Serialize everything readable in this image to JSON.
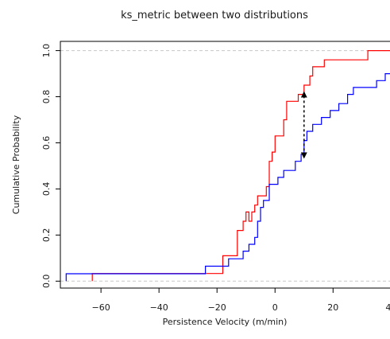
{
  "chart_data": {
    "type": "line",
    "subtype": "ecdf-step",
    "title": "ks_metric between two distributions",
    "xlabel": "Persistence Velocity (m/min)",
    "ylabel": "Cumulative Probability",
    "xlim": [
      -74,
      41
    ],
    "ylim": [
      -0.03,
      1.04
    ],
    "xticks": [
      -60,
      -40,
      -20,
      0,
      20,
      40
    ],
    "xtick_labels": [
      "−60",
      "−40",
      "−20",
      "0",
      "20",
      "40"
    ],
    "yticks": [
      0.0,
      0.2,
      0.4,
      0.6,
      0.8,
      1.0
    ],
    "ytick_labels": [
      "0.0",
      "0.2",
      "0.4",
      "0.6",
      "0.8",
      "1.0"
    ],
    "reference_lines_y": [
      0,
      1
    ],
    "grid": false,
    "legend": "none",
    "series": [
      {
        "color": "#ff0000",
        "points": [
          [
            -63,
            0.0
          ],
          [
            -63,
            0.033
          ],
          [
            -18,
            0.033
          ],
          [
            -18,
            0.11
          ],
          [
            -13,
            0.11
          ],
          [
            -13,
            0.22
          ],
          [
            -11,
            0.22
          ],
          [
            -11,
            0.26
          ],
          [
            -10,
            0.26
          ],
          [
            -10,
            0.3
          ],
          [
            -9,
            0.3
          ],
          [
            -9,
            0.26
          ],
          [
            -8,
            0.26
          ],
          [
            -8,
            0.3
          ],
          [
            -7,
            0.3
          ],
          [
            -7,
            0.33
          ],
          [
            -6,
            0.33
          ],
          [
            -6,
            0.37
          ],
          [
            -3,
            0.37
          ],
          [
            -3,
            0.41
          ],
          [
            -2,
            0.41
          ],
          [
            -2,
            0.52
          ],
          [
            -1,
            0.52
          ],
          [
            -1,
            0.56
          ],
          [
            0,
            0.56
          ],
          [
            0,
            0.63
          ],
          [
            3,
            0.63
          ],
          [
            3,
            0.7
          ],
          [
            4,
            0.7
          ],
          [
            4,
            0.78
          ],
          [
            8,
            0.78
          ],
          [
            8,
            0.81
          ],
          [
            10,
            0.81
          ],
          [
            10,
            0.85
          ],
          [
            12,
            0.85
          ],
          [
            12,
            0.89
          ],
          [
            13,
            0.89
          ],
          [
            13,
            0.93
          ],
          [
            17,
            0.93
          ],
          [
            17,
            0.96
          ],
          [
            32,
            0.96
          ],
          [
            32,
            1.0
          ],
          [
            41,
            1.0
          ]
        ]
      },
      {
        "color": "#0000ff",
        "points": [
          [
            -72,
            0.0
          ],
          [
            -72,
            0.032
          ],
          [
            -24,
            0.032
          ],
          [
            -24,
            0.065
          ],
          [
            -16,
            0.065
          ],
          [
            -16,
            0.097
          ],
          [
            -11,
            0.097
          ],
          [
            -11,
            0.13
          ],
          [
            -9,
            0.13
          ],
          [
            -9,
            0.16
          ],
          [
            -7,
            0.16
          ],
          [
            -7,
            0.19
          ],
          [
            -6,
            0.19
          ],
          [
            -6,
            0.26
          ],
          [
            -5,
            0.26
          ],
          [
            -5,
            0.32
          ],
          [
            -4,
            0.32
          ],
          [
            -4,
            0.35
          ],
          [
            -2,
            0.35
          ],
          [
            -2,
            0.42
          ],
          [
            1,
            0.42
          ],
          [
            1,
            0.45
          ],
          [
            3,
            0.45
          ],
          [
            3,
            0.48
          ],
          [
            7,
            0.48
          ],
          [
            7,
            0.52
          ],
          [
            9,
            0.52
          ],
          [
            9,
            0.55
          ],
          [
            10,
            0.55
          ],
          [
            10,
            0.61
          ],
          [
            11,
            0.61
          ],
          [
            11,
            0.65
          ],
          [
            13,
            0.65
          ],
          [
            13,
            0.68
          ],
          [
            16,
            0.68
          ],
          [
            16,
            0.71
          ],
          [
            19,
            0.71
          ],
          [
            19,
            0.74
          ],
          [
            22,
            0.74
          ],
          [
            22,
            0.77
          ],
          [
            25,
            0.77
          ],
          [
            25,
            0.81
          ],
          [
            27,
            0.81
          ],
          [
            27,
            0.84
          ],
          [
            35,
            0.84
          ],
          [
            35,
            0.87
          ],
          [
            38,
            0.87
          ],
          [
            38,
            0.9
          ],
          [
            40,
            0.9
          ],
          [
            40,
            0.94
          ],
          [
            41,
            0.94
          ]
        ]
      }
    ],
    "annotation": {
      "kind": "double-arrow",
      "style": "dashed",
      "color": "#000000",
      "x": 10,
      "y_from": 0.545,
      "y_to": 0.81
    }
  }
}
